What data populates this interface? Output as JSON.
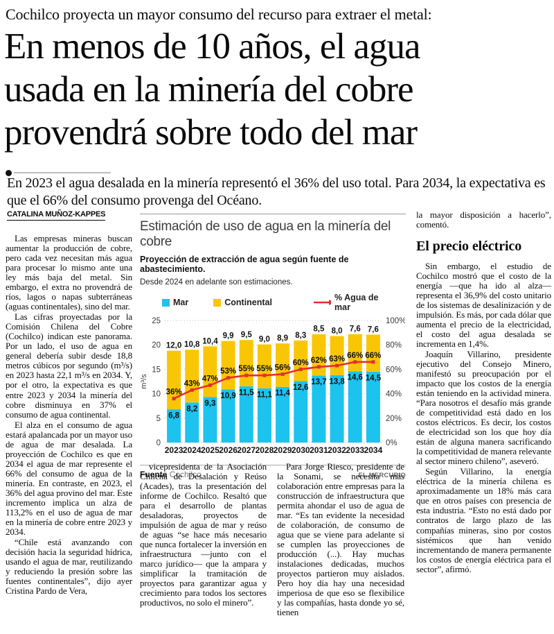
{
  "kicker": "Cochilco proyecta un mayor consumo del recurso para extraer el metal:",
  "headline": {
    "lines": [
      "En menos de 10 años, el agua",
      "usada en la minería del cobre",
      "provendrá sobre todo del mar"
    ]
  },
  "subheadline": "En 2023 el agua desalada en la minería representó el 36% del uso total. Para 2034, la expectativa es que el 66% del consumo provenga del Océano.",
  "byline": "CATALINA MUÑOZ-KAPPES",
  "columns": {
    "col1": [
      "Las empresas mineras buscan aumentar la producción de cobre, pero cada vez necesitan más agua para procesar lo mismo ante una ley más baja del metal. Sin embargo, el extra no provendrá de ríos, lagos o napas subterráneas (aguas continentales), sino del mar.",
      "Las cifras proyectadas por la Comisión Chilena del Cobre (Cochilco) indican este panorama. Por un lado, el uso de agua en general debería subir desde 18,8 metros cúbicos por segundo (m³/s) en 2023 hasta 22,1 m³/s en 2034. Y, por el otro, la expectativa es que entre 2023 y 2034 la minería del cobre disminuya en 37% el consumo de agua continental.",
      "El alza en el consumo de agua estará apalancada por un mayor uso de agua de mar desalada. La proyección de Cochilco es que en 2034 el agua de mar represente el 66% del consumo de agua de la minería. En contraste, en 2023, el 36% del agua provino del mar. Este incremento implica un alza de 113,2% en el uso de agua de mar en la minería de cobre entre 2023 y 2034.",
      "“Chile está avanzando con decisión hacia la seguridad hídrica, usando el agua de mar, reutilizando y reduciendo la presión sobre las fuentes continentales”, dijo ayer Cristina Pardo de Vera,"
    ],
    "col2": [
      "vicepresidenta de la Asociación Chilena de Desalación y Reúso (Acades), tras la presentación del informe de Cochilco. Resaltó que para el desarrollo de plantas desaladoras, proyectos de impulsión de agua de mar y reúso de aguas “se hace más necesario que nunca fortalecer la inversión en infraestructura —junto con el marco jurídico— que la ampara y simplificar la tramitación de proyectos para garantizar agua y crecimiento para todos los sectores productivos, no solo el minero”."
    ],
    "col3": [
      "Para Jorge Riesco, presidente de la Sonami, se necesita más colaboración entre empresas para la construcción de infraestructura que permita ahondar el uso de agua de mar. “Es tan evidente la necesidad de colaboración, de consumo de agua que se viene para adelante si se cumplen las proyecciones de producción (...). Hay muchas instalaciones dedicadas, muchos proyectos partieron muy aislados. Pero hoy día hay una necesidad imperiosa de que eso se flexibilice y las compañías, hasta donde yo sé, tienen"
    ],
    "col4_intro": "la mayor disposición a hacerlo”, comentó.",
    "col4_heading": "El precio eléctrico",
    "col4": [
      "Sin embargo, el estudio de Cochilco mostró que el costo de la energía —que ha ido al alza— representa el 36,9% del costo unitario de los sistemas de desalinización y de impulsión. Es más, por cada dólar que aumenta el precio de la electricidad, el costo del agua desalada se incrementa en 1,4%.",
      "Joaquín Villarino, presidente ejecutivo del Consejo Minero, manifestó su preocupación por el impacto que los costos de la energía están teniendo en la actividad minera. “Para nosotros el desafío más grande de competitividad está dado en los costos eléctricos. Es decir, los costos de electricidad son los que hoy día están de alguna manera sacrificando la competitividad de manera relevante al sector minero chileno”, aseveró.",
      "Según Villarino, la energía eléctrica de la minería chilena es aproximadamente un 18% más cara que en otros países con presencia de esta industria. “Esto no está dado por contratos de largo plazo de las compañías mineras, sino por costos sistémicos que han venido incrementando de manera permanente los costos de energía eléctrica para el sector”, afirmó."
    ]
  },
  "chart": {
    "title": "Estimación de uso de agua en la minería del cobre",
    "subtitle": "Proyección de extracción de agua según fuente de abastecimiento.",
    "note": "Desde 2024 en adelante son estimaciones.",
    "legend": {
      "mar": "Mar",
      "continental": "Continental",
      "line": "% Agua de mar"
    },
    "source_label": "Fuente",
    "source": "Cochilco",
    "credit": "EL MERCURIO"
  },
  "colors": {
    "mar": "#1cc3ee",
    "continental": "#f9c606",
    "line": "#e62e2e",
    "grid": "#b9b9b9",
    "axis_text": "#3a3a3a",
    "label_text": "#111111"
  },
  "chart_data": {
    "type": "bar",
    "stacked": true,
    "title": "Estimación de uso de agua en la minería del cobre",
    "categories": [
      "2023",
      "2024",
      "2025",
      "2026",
      "2027",
      "2028",
      "2029",
      "2030",
      "2031",
      "2032",
      "2033",
      "2034"
    ],
    "series": [
      {
        "name": "Mar",
        "values": [
          6.8,
          8.2,
          9.3,
          10.9,
          11.5,
          11.1,
          11.4,
          12.6,
          13.7,
          13.8,
          14.6,
          14.5
        ],
        "labels": [
          "6,8",
          "8,2",
          "9,3",
          "10,9",
          "11,5",
          "11,1",
          "11,4",
          "12,6",
          "13,7",
          "13,8",
          "14,6",
          "14,5"
        ]
      },
      {
        "name": "Continental",
        "values": [
          12.0,
          10.8,
          10.4,
          9.9,
          9.5,
          9.0,
          8.9,
          8.3,
          8.5,
          8.0,
          7.6,
          7.6
        ],
        "labels": [
          "12,0",
          "10,8",
          "10,4",
          "9,9",
          "9,5",
          "9,0",
          "8,9",
          "8,3",
          "8,5",
          "8,0",
          "7,6",
          "7,6"
        ]
      }
    ],
    "line_series": {
      "name": "% Agua de mar",
      "values": [
        36,
        43,
        47,
        53,
        55,
        55,
        56,
        60,
        62,
        63,
        66,
        66
      ],
      "labels": [
        "36%",
        "43%",
        "47%",
        "53%",
        "55%",
        "55%",
        "56%",
        "60%",
        "62%",
        "63%",
        "66%",
        "66%"
      ]
    },
    "ylabel": "m³/s",
    "ylim": [
      0,
      25
    ],
    "yticks": [
      0,
      5,
      10,
      15,
      20,
      25
    ],
    "y2lim": [
      0,
      100
    ],
    "y2ticks": [
      "0%",
      "20%",
      "40%",
      "60%",
      "80%",
      "100%"
    ],
    "grid": true,
    "legend_position": "top"
  }
}
